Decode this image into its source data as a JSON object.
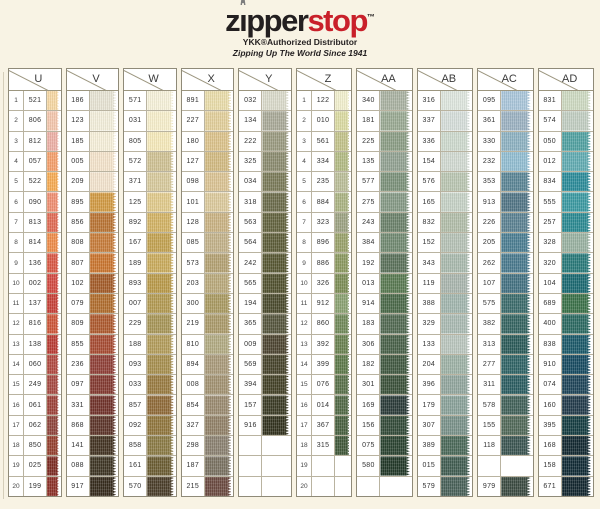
{
  "header": {
    "logo": {
      "part1": "z",
      "part2": "pper",
      "part3": "stop",
      "tm": "™"
    },
    "distributor": "YKK®Authorized Distributor",
    "tagline": "Zipping Up The World Since 1941"
  },
  "colors": {
    "accent_red": "#c9202a",
    "logo_black": "#231f20",
    "page_bg": "#f8f3e4",
    "grid": "#b9b3a0"
  },
  "row_numbers": [
    1,
    2,
    3,
    4,
    5,
    6,
    7,
    8,
    9,
    10,
    11,
    12,
    13,
    14,
    15,
    16,
    17,
    18,
    19,
    20
  ],
  "panels": [
    {
      "id": "left",
      "columns": [
        {
          "letter": "U",
          "codes": [
            "521",
            "806",
            "812",
            "057",
            "522",
            "090",
            "813",
            "814",
            "136",
            "002",
            "137",
            "816",
            "138",
            "060",
            "249",
            "061",
            "062",
            "850",
            "025",
            "199"
          ],
          "swatches": [
            "#f6d7a3",
            "#f3c6ad",
            "#ecb0a6",
            "#f4a06c",
            "#f6ab54",
            "#ef8f72",
            "#e06b55",
            "#ee8c4a",
            "#d95845",
            "#d24a42",
            "#c64139",
            "#cd5639",
            "#b93c34",
            "#b14a41",
            "#a64a42",
            "#9d423a",
            "#8f453c",
            "#95402f",
            "#7d2c24",
            "#8c3129"
          ]
        },
        {
          "letter": "V",
          "codes": [
            "186",
            "123",
            "185",
            "005",
            "209",
            "895",
            "856",
            "808",
            "807",
            "102",
            "079",
            "809",
            "855",
            "236",
            "097",
            "331",
            "868",
            "141",
            "088",
            "917"
          ],
          "swatches": [
            "#e7e3d3",
            "#f2eeda",
            "#f6efd9",
            "#f3e3cb",
            "#f2e3cd",
            "#d19a43",
            "#b97434",
            "#c67c3a",
            "#c9752f",
            "#a35c29",
            "#b06d2d",
            "#ad5a2e",
            "#a74c33",
            "#8f4038",
            "#833a31",
            "#71332b",
            "#5d352a",
            "#433423",
            "#3e3524",
            "#372c1e"
          ]
        },
        {
          "letter": "W",
          "codes": [
            "571",
            "031",
            "805",
            "572",
            "371",
            "125",
            "892",
            "167",
            "189",
            "893",
            "007",
            "229",
            "188",
            "093",
            "033",
            "857",
            "092",
            "858",
            "161",
            "570"
          ],
          "swatches": [
            "#f6f1d9",
            "#f6eecb",
            "#f5e9ba",
            "#cfc193",
            "#d7c99c",
            "#e0ca8b",
            "#d2b264",
            "#c2a251",
            "#c9ab5c",
            "#b99a4a",
            "#b29a52",
            "#a79557",
            "#b29c5b",
            "#a78f4f",
            "#997b41",
            "#8f6a39",
            "#90763d",
            "#8a7a45",
            "#6b5d33",
            "#4b3e2a"
          ]
        },
        {
          "letter": "X",
          "codes": [
            "891",
            "227",
            "180",
            "127",
            "098",
            "101",
            "128",
            "085",
            "573",
            "203",
            "300",
            "219",
            "810",
            "894",
            "008",
            "854",
            "327",
            "298",
            "187",
            "215"
          ],
          "swatches": [
            "#e9dcaa",
            "#e2cf9b",
            "#dbc28b",
            "#d2ba82",
            "#dac393",
            "#dbc99c",
            "#c9b283",
            "#c2b189",
            "#b3a173",
            "#b9a97b",
            "#a99a62",
            "#aa9a6a",
            "#b1aa82",
            "#a99a7a",
            "#a29272",
            "#9a8a70",
            "#918168",
            "#8b8171",
            "#7a7262",
            "#6b4b41"
          ]
        },
        {
          "letter": "Y",
          "codes": [
            "032",
            "134",
            "222",
            "325",
            "034",
            "318",
            "563",
            "564",
            "242",
            "565",
            "194",
            "365",
            "009",
            "569",
            "394",
            "157",
            "916",
            "",
            "",
            ""
          ],
          "swatches": [
            "#d9d9c9",
            "#a9a998",
            "#9a9a80",
            "#8b8b6f",
            "#7a7a59",
            "#6b6b4b",
            "#63633f",
            "#5d5d39",
            "#575733",
            "#51512f",
            "#4b4b2d",
            "#55553d",
            "#4d4531",
            "#47432b",
            "#434127",
            "#3b3b25",
            "#33331f",
            null,
            null,
            null
          ]
        }
      ]
    },
    {
      "id": "right",
      "columns": [
        {
          "letter": "Z",
          "codes": [
            "122",
            "010",
            "561",
            "334",
            "235",
            "884",
            "323",
            "896",
            "886",
            "326",
            "912",
            "860",
            "392",
            "399",
            "076",
            "014",
            "367",
            "315",
            "",
            ""
          ],
          "swatches": [
            "#f1efcd",
            "#dadaa2",
            "#c2c28a",
            "#b2ba84",
            "#babe98",
            "#aab282",
            "#9ca282",
            "#99a16a",
            "#8b9960",
            "#7c8d56",
            "#8aa172",
            "#71895a",
            "#698150",
            "#5d794a",
            "#59714a",
            "#516946",
            "#496140",
            "#41593a",
            null,
            null
          ]
        },
        {
          "letter": "AA",
          "codes": [
            "340",
            "181",
            "225",
            "135",
            "577",
            "275",
            "243",
            "384",
            "192",
            "013",
            "914",
            "183",
            "306",
            "182",
            "301",
            "169",
            "156",
            "075",
            "580",
            ""
          ],
          "swatches": [
            "#a9b1a1",
            "#99a992",
            "#8b9d85",
            "#91a191",
            "#7b917a",
            "#859985",
            "#6b816a",
            "#718971",
            "#5b715a",
            "#597951",
            "#4b6949",
            "#516951",
            "#496149",
            "#415941",
            "#3b513a",
            "#2b3b39",
            "#334b39",
            "#2b4331",
            "#233929",
            null
          ]
        },
        {
          "letter": "AB",
          "codes": [
            "316",
            "337",
            "336",
            "154",
            "576",
            "165",
            "832",
            "152",
            "343",
            "119",
            "388",
            "329",
            "133",
            "204",
            "396",
            "179",
            "307",
            "389",
            "015",
            "579"
          ],
          "swatches": [
            "#dde5dd",
            "#d5ddd9",
            "#cdd9cd",
            "#d1d9d1",
            "#b9c5b1",
            "#c5d1c5",
            "#b1bda9",
            "#b5c1b5",
            "#a9b9ad",
            "#a9b5ad",
            "#a1b5ad",
            "#a9b9b1",
            "#b9c5bd",
            "#9db1a5",
            "#91a59d",
            "#89a199",
            "#799189",
            "#4b6959",
            "#415d51",
            "#496159"
          ]
        },
        {
          "letter": "AC",
          "codes": [
            "095",
            "361",
            "330",
            "232",
            "353",
            "913",
            "226",
            "205",
            "262",
            "107",
            "575",
            "382",
            "313",
            "277",
            "311",
            "578",
            "155",
            "118",
            "",
            "979"
          ],
          "swatches": [
            "#a9c5d9",
            "#9bb1c1",
            "#8db1c1",
            "#91bdd1",
            "#5b8595",
            "#517585",
            "#5b8191",
            "#4b7d91",
            "#49798d",
            "#437181",
            "#3b6b6b",
            "#356461",
            "#2b5b59",
            "#2f6365",
            "#2b5d61",
            "#416159",
            "#516959",
            "#3b5551",
            null,
            "#3b4b41"
          ]
        },
        {
          "letter": "AD",
          "codes": [
            "831",
            "574",
            "050",
            "012",
            "834",
            "555",
            "257",
            "328",
            "320",
            "104",
            "689",
            "400",
            "838",
            "910",
            "074",
            "160",
            "395",
            "168",
            "158",
            "671"
          ],
          "swatches": [
            "#cdd9c1",
            "#c1cdc1",
            "#51a1a1",
            "#61abb1",
            "#2b8b99",
            "#3b99a1",
            "#2b8991",
            "#99b1a1",
            "#297979",
            "#1b6971",
            "#3b7149",
            "#2b6961",
            "#1b5969",
            "#174b61",
            "#1f4559",
            "#233b4b",
            "#153d41",
            "#132931",
            "#112b35",
            "#13272f"
          ]
        }
      ]
    }
  ]
}
